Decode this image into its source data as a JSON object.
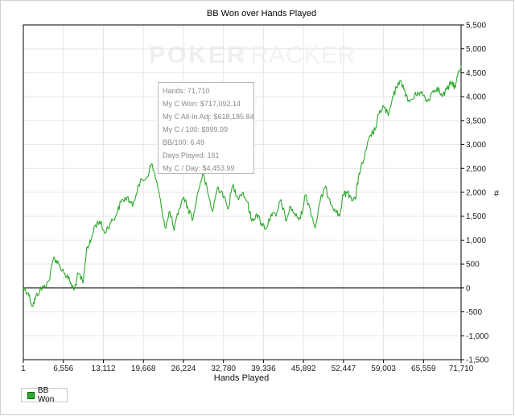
{
  "chart_data": {
    "type": "line",
    "title": "BB Won over Hands Played",
    "xlabel": "Hands Played",
    "ylabel": "#",
    "x_ticks": [
      "1",
      "6,556",
      "13,112",
      "19,668",
      "26,224",
      "32,780",
      "39,336",
      "45,892",
      "52,447",
      "59,003",
      "65,559",
      "71,710"
    ],
    "xlim": [
      1,
      71710
    ],
    "y_ticks": [
      "5,500",
      "5,000",
      "4,500",
      "4,000",
      "3,500",
      "3,000",
      "2,500",
      "2,000",
      "1,500",
      "1,000",
      "500",
      "0",
      "-500",
      "-1,000",
      "-1,500"
    ],
    "ylim": [
      -1500,
      5500
    ],
    "grid": true,
    "legend_position": "bottom-left",
    "watermark": {
      "part1": "POKER",
      "part2": "TRACKER"
    },
    "series": [
      {
        "name": "BB Won",
        "color": "#2ca82c",
        "x": [
          1,
          800,
          1500,
          2000,
          2700,
          3300,
          4200,
          5000,
          5800,
          6800,
          7600,
          8300,
          9000,
          9800,
          10400,
          11000,
          11700,
          12500,
          13300,
          14200,
          15100,
          16000,
          17000,
          17900,
          18800,
          19500,
          20200,
          21000,
          21800,
          22600,
          23300,
          24000,
          24700,
          25500,
          26300,
          27000,
          27800,
          28600,
          29400,
          30200,
          31000,
          31800,
          32600,
          33500,
          34300,
          35100,
          35900,
          36700,
          37400,
          38200,
          39000,
          39800,
          40600,
          41400,
          42200,
          43000,
          43800,
          44600,
          45400,
          46200,
          47000,
          47800,
          48600,
          49400,
          50200,
          51000,
          51800,
          52400,
          53000,
          53700,
          54400,
          55000,
          55600,
          56200,
          56900,
          57600,
          58300,
          59000,
          59800,
          60600,
          61400,
          62200,
          63000,
          63800,
          64600,
          65400,
          66200,
          67000,
          67800,
          68600,
          69400,
          70200,
          70800,
          71200,
          71710
        ],
        "y": [
          0,
          -100,
          -380,
          -200,
          -50,
          20,
          150,
          650,
          500,
          300,
          150,
          -50,
          300,
          100,
          850,
          950,
          1300,
          1400,
          1150,
          1350,
          1500,
          1800,
          1900,
          1700,
          2150,
          2250,
          2300,
          2600,
          2250,
          1700,
          1250,
          1600,
          1200,
          1650,
          1900,
          1650,
          1450,
          2000,
          2400,
          2000,
          1600,
          2100,
          2000,
          1650,
          2150,
          1900,
          2000,
          1800,
          1400,
          1550,
          1350,
          1250,
          1550,
          1500,
          1850,
          1400,
          1700,
          1500,
          1450,
          1950,
          1650,
          1250,
          1800,
          2100,
          1850,
          1650,
          1500,
          1950,
          2000,
          1900,
          1850,
          2400,
          2600,
          2900,
          3200,
          3300,
          3650,
          3800,
          3600,
          4000,
          4300,
          4250,
          3900,
          3950,
          4100,
          4050,
          3900,
          4100,
          4200,
          4000,
          4150,
          4300,
          4200,
          4500,
          4650
        ]
      }
    ],
    "tooltip": [
      "Hands: 71,710",
      "My C Won: $717,092.14",
      "My C All-In Adj: $618,185.84",
      "My C / 100: $999.99",
      "BB/100: 6.49",
      "Days Played: 161",
      "My C / Day: $4,453.99"
    ]
  }
}
